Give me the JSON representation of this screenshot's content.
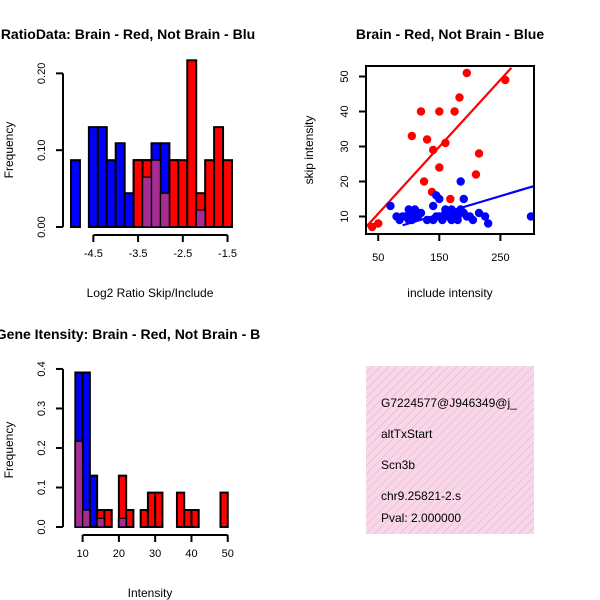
{
  "chart_data": [
    {
      "type": "bar",
      "title": "RatioData: Brain - Red, Not Brain - Blu",
      "xlabel": "Log2 Ratio Skip/Include",
      "ylabel": "Frequency",
      "xlim": [
        -5.0,
        -1.4
      ],
      "ylim": [
        0,
        0.22
      ],
      "xticks": [
        -4.5,
        -3.5,
        -2.5,
        -1.5
      ],
      "xtick_labels": [
        "-4.5",
        "-3.5",
        "-2.5",
        "-1.5"
      ],
      "yticks": [
        0.0,
        0.1,
        0.2
      ],
      "ytick_labels": [
        "0.00",
        "0.10",
        "0.20"
      ],
      "bin_width": 0.2,
      "series": [
        {
          "name": "Not Brain",
          "color": "#0000ff",
          "bins": [
            [
              -5.0,
              0.087
            ],
            [
              -4.6,
              0.13
            ],
            [
              -4.4,
              0.13
            ],
            [
              -4.2,
              0.087
            ],
            [
              -4.0,
              0.109
            ],
            [
              -3.8,
              0.044
            ],
            [
              -3.6,
              0.087
            ],
            [
              -3.4,
              0.087
            ],
            [
              -3.2,
              0.109
            ],
            [
              -3.0,
              0.109
            ],
            [
              -2.8,
              0.087
            ],
            [
              -2.6,
              0.022
            ],
            [
              -2.2,
              0.022
            ]
          ]
        },
        {
          "name": "Brain",
          "color": "#ff0000",
          "bins": [
            [
              -3.6,
              0.087
            ],
            [
              -3.4,
              0.087
            ],
            [
              -3.2,
              0.087
            ],
            [
              -3.0,
              0.044
            ],
            [
              -2.8,
              0.087
            ],
            [
              -2.6,
              0.087
            ],
            [
              -2.4,
              0.217
            ],
            [
              -2.2,
              0.044
            ],
            [
              -2.0,
              0.087
            ],
            [
              -1.8,
              0.13
            ],
            [
              -1.6,
              0.087
            ]
          ]
        },
        {
          "name": "Overlap",
          "color": "#9933aa",
          "bins": [
            [
              -3.4,
              0.065
            ],
            [
              -3.2,
              0.087
            ],
            [
              -3.0,
              0.044
            ],
            [
              -2.2,
              0.022
            ]
          ]
        }
      ]
    },
    {
      "type": "scatter",
      "title": "Brain - Red, Not Brain - Blue",
      "xlabel": "include intensity",
      "ylabel": "skip intensity",
      "xlim": [
        30,
        305
      ],
      "ylim": [
        5,
        53
      ],
      "xticks": [
        50,
        150,
        250
      ],
      "yticks": [
        10,
        20,
        30,
        40,
        50
      ],
      "series": [
        {
          "name": "Brain",
          "color": "#ff0000",
          "points": [
            [
              40,
              7
            ],
            [
              50,
              8
            ],
            [
              105,
              33
            ],
            [
              125,
              20
            ],
            [
              130,
              32
            ],
            [
              138,
              17
            ],
            [
              140,
              29
            ],
            [
              150,
              24
            ],
            [
              160,
              31
            ],
            [
              120,
              40
            ],
            [
              150,
              40
            ],
            [
              175,
              40
            ],
            [
              183,
              44
            ],
            [
              195,
              51
            ],
            [
              215,
              28
            ],
            [
              210,
              22
            ],
            [
              258,
              49
            ],
            [
              168,
              15
            ]
          ],
          "fit": [
            [
              30,
              7.0
            ],
            [
              268,
              52.5
            ]
          ]
        },
        {
          "name": "Not Brain",
          "color": "#0000ff",
          "points": [
            [
              70,
              13
            ],
            [
              80,
              10
            ],
            [
              85,
              9
            ],
            [
              90,
              10
            ],
            [
              95,
              10
            ],
            [
              100,
              9
            ],
            [
              105,
              11
            ],
            [
              110,
              12
            ],
            [
              115,
              10
            ],
            [
              120,
              11
            ],
            [
              130,
              9
            ],
            [
              140,
              9
            ],
            [
              145,
              10
            ],
            [
              150,
              10
            ],
            [
              155,
              9
            ],
            [
              160,
              11
            ],
            [
              165,
              10
            ],
            [
              170,
              12
            ],
            [
              175,
              11
            ],
            [
              180,
              10
            ],
            [
              185,
              12
            ],
            [
              190,
              11
            ],
            [
              200,
              10
            ],
            [
              205,
              9
            ],
            [
              215,
              11
            ],
            [
              225,
              10
            ],
            [
              230,
              8
            ],
            [
              140,
              13
            ],
            [
              145,
              16
            ],
            [
              150,
              15
            ],
            [
              160,
              12
            ],
            [
              185,
              20
            ],
            [
              190,
              15
            ],
            [
              100,
              12
            ],
            [
              105,
              9
            ],
            [
              115,
              11
            ],
            [
              170,
              9
            ],
            [
              180,
              9
            ],
            [
              195,
              10
            ],
            [
              300,
              10
            ]
          ],
          "fit": [
            [
              90,
              7.5
            ],
            [
              305,
              18.7
            ]
          ]
        }
      ]
    },
    {
      "type": "bar",
      "title": "Gene Itensity: Brain - Red, Not Brain - B",
      "xlabel": "Intensity",
      "ylabel": "Frequency",
      "xlim": [
        6.8,
        52
      ],
      "ylim": [
        0,
        0.41
      ],
      "xticks": [
        10,
        20,
        30,
        40,
        50
      ],
      "yticks": [
        0.0,
        0.1,
        0.2,
        0.3,
        0.4
      ],
      "ytick_labels": [
        "0.0",
        "0.1",
        "0.2",
        "0.3",
        "0.4"
      ],
      "bin_width": 2,
      "series": [
        {
          "name": "Not Brain",
          "color": "#0000ff",
          "bins": [
            [
              8,
              0.391
            ],
            [
              10,
              0.391
            ],
            [
              12,
              0.13
            ],
            [
              14,
              0.043
            ],
            [
              16,
              0.043
            ],
            [
              20,
              0.022
            ]
          ]
        },
        {
          "name": "Brain",
          "color": "#ff0000",
          "bins": [
            [
              8,
              0.217
            ],
            [
              10,
              0.043
            ],
            [
              14,
              0.043
            ],
            [
              16,
              0.043
            ],
            [
              20,
              0.13
            ],
            [
              22,
              0.043
            ],
            [
              26,
              0.043
            ],
            [
              28,
              0.087
            ],
            [
              30,
              0.087
            ],
            [
              36,
              0.087
            ],
            [
              38,
              0.043
            ],
            [
              40,
              0.043
            ],
            [
              48,
              0.087
            ]
          ]
        },
        {
          "name": "Overlap",
          "color": "#9933aa",
          "bins": [
            [
              8,
              0.217
            ],
            [
              10,
              0.043
            ],
            [
              14,
              0.022
            ],
            [
              20,
              0.022
            ]
          ]
        }
      ]
    }
  ],
  "info": {
    "bg_color": "#f8d8e8",
    "lines": [
      "G7224577@J946349@j_",
      "altTxStart",
      "Scn3b",
      "chr9.25821-2.s"
    ],
    "pval": "Pval: 2.000000",
    "pval_color": "#cc0000"
  }
}
